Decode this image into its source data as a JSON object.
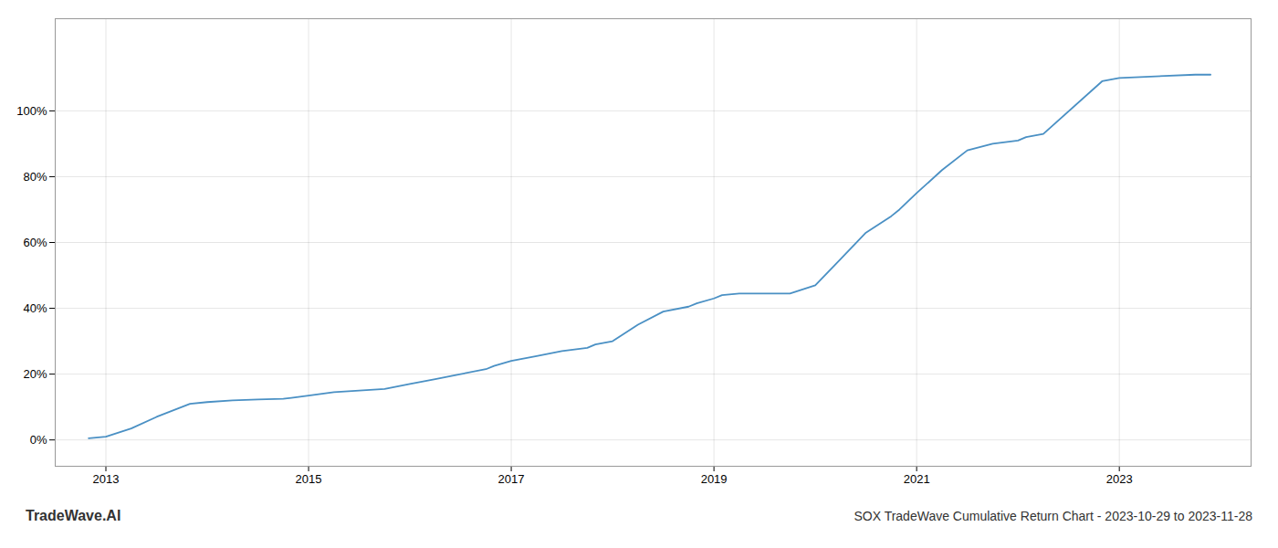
{
  "chart_data": {
    "type": "line",
    "title": "SOX TradeWave Cumulative Return Chart - 2023-10-29 to 2023-11-28",
    "annotations": [
      "TradeWave.AI"
    ],
    "x": [
      2012.83,
      2013.0,
      2013.25,
      2013.5,
      2013.83,
      2014.0,
      2014.25,
      2014.5,
      2014.75,
      2014.83,
      2015.0,
      2015.25,
      2015.5,
      2015.75,
      2015.83,
      2016.0,
      2016.25,
      2016.5,
      2016.75,
      2016.83,
      2017.0,
      2017.25,
      2017.5,
      2017.75,
      2017.83,
      2018.0,
      2018.25,
      2018.5,
      2018.75,
      2018.83,
      2019.0,
      2019.08,
      2019.25,
      2019.5,
      2019.75,
      2020.0,
      2020.25,
      2020.5,
      2020.75,
      2020.83,
      2021.0,
      2021.25,
      2021.5,
      2021.75,
      2022.0,
      2022.08,
      2022.25,
      2022.83,
      2023.0,
      2023.75,
      2023.9
    ],
    "values": [
      0.5,
      1.0,
      3.5,
      7.0,
      11.0,
      11.5,
      12.0,
      12.3,
      12.5,
      12.8,
      13.5,
      14.5,
      15.0,
      15.5,
      16.0,
      17.0,
      18.5,
      20.0,
      21.5,
      22.5,
      24.0,
      25.5,
      27.0,
      28.0,
      29.0,
      30.0,
      35.0,
      39.0,
      40.5,
      41.5,
      43.0,
      44.0,
      44.5,
      44.5,
      44.5,
      47.0,
      55.0,
      63.0,
      68.0,
      70.0,
      75.0,
      82.0,
      88.0,
      90.0,
      91.0,
      92.0,
      93.0,
      109.0,
      110.0,
      111.0,
      111.0
    ],
    "color": "#4a90c4",
    "xlim": [
      2012.5,
      2024.3
    ],
    "xticks": [
      2013,
      2015,
      2017,
      2019,
      2021,
      2023
    ],
    "ylim": [
      -8,
      128
    ],
    "yticks": [
      {
        "value": 0,
        "label": "0%"
      },
      {
        "value": 20,
        "label": "20%"
      },
      {
        "value": 40,
        "label": "40%"
      },
      {
        "value": 60,
        "label": "60%"
      },
      {
        "value": 80,
        "label": "80%"
      },
      {
        "value": 100,
        "label": "100%"
      }
    ],
    "grid": true
  }
}
